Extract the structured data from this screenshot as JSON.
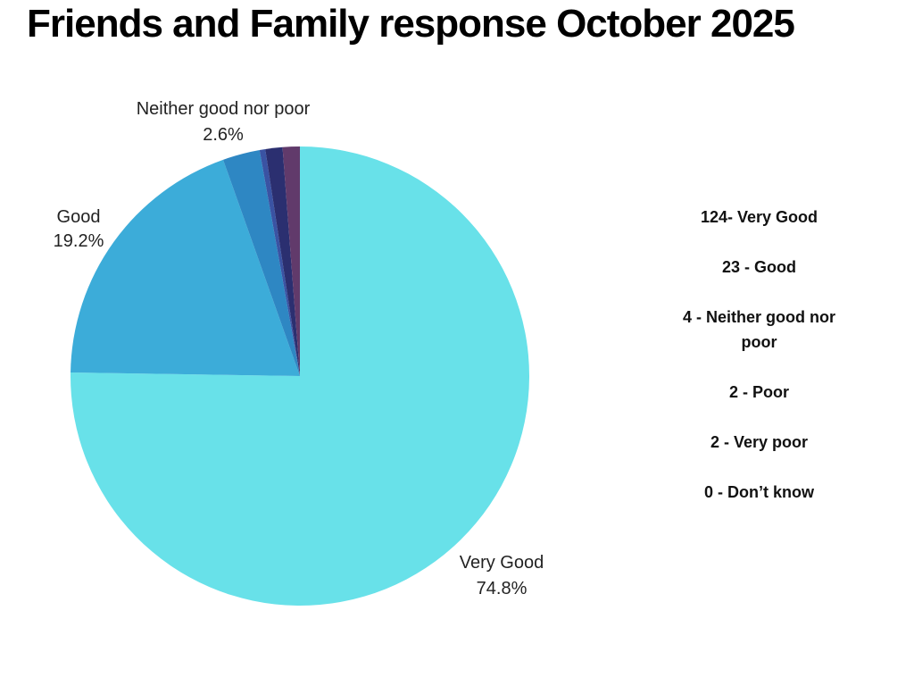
{
  "title": "Friends and Family response October 2025",
  "chart_data": {
    "type": "pie",
    "title": "Friends and Family response October 2025",
    "legend_position": "none",
    "start_angle_deg": 0,
    "direction": "clockwise",
    "slices": [
      {
        "label": "Very Good",
        "value_pct": 74.8,
        "pct_label": "74.8%",
        "color": "#68E1E9"
      },
      {
        "label": "Good",
        "value_pct": 19.2,
        "pct_label": "19.2%",
        "color": "#3CACD9"
      },
      {
        "label": "Neither good nor poor",
        "value_pct": 2.6,
        "pct_label": "2.6%",
        "color": "#2E87C3"
      },
      {
        "label": "Poor",
        "value_pct": 0.4,
        "pct_label": "",
        "color": "#3A53A3"
      },
      {
        "label": "Very poor",
        "value_pct": 1.2,
        "pct_label": "",
        "color": "#2B2F70"
      },
      {
        "label": "Don't know",
        "value_pct": 1.2,
        "pct_label": "",
        "color": "#613A6B"
      }
    ],
    "counts": [
      {
        "label": "Very Good",
        "count": 124
      },
      {
        "label": "Good",
        "count": 23
      },
      {
        "label": "Neither good nor poor",
        "count": 4
      },
      {
        "label": "Poor",
        "count": 2
      },
      {
        "label": "Very poor",
        "count": 2
      },
      {
        "label": "Don’t know",
        "count": 0
      }
    ]
  },
  "callouts": {
    "neither": {
      "line1": "Neither good nor poor",
      "line2": "2.6%"
    },
    "good": {
      "line1": "Good",
      "line2": "19.2%"
    },
    "verygood": {
      "line1": "Very Good",
      "line2": "74.8%"
    }
  },
  "side_panel": {
    "items": [
      "124- Very Good",
      "23 - Good",
      "4 - Neither good nor poor",
      "2 - Poor",
      "2 - Very poor",
      "0 - Don’t know"
    ]
  }
}
